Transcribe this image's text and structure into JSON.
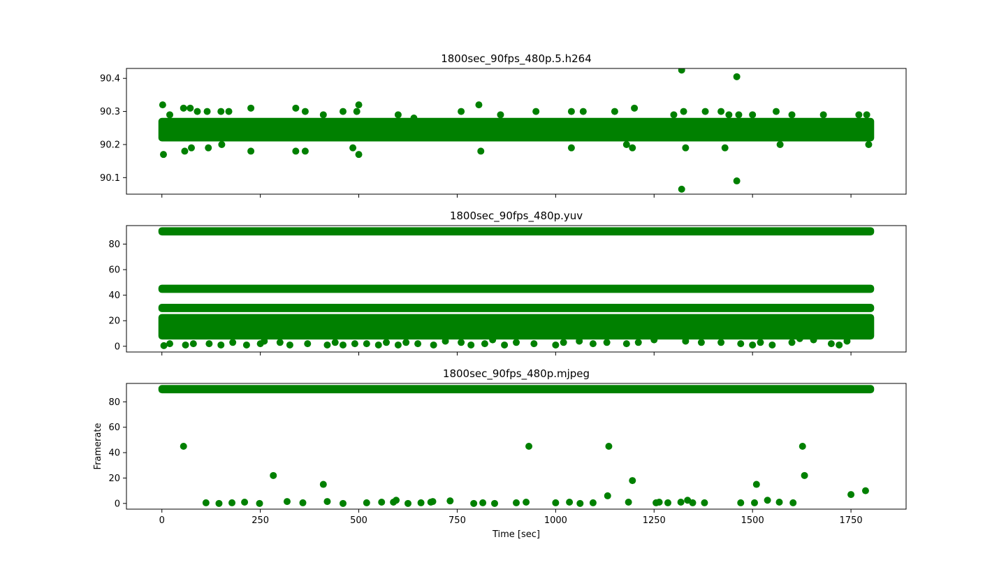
{
  "chart_data": [
    {
      "type": "scatter",
      "title": "1800sec_90fps_480p.5.h264",
      "xlabel": "",
      "ylabel": "",
      "color": "#008000",
      "xlim": [
        -90,
        1890
      ],
      "ylim": [
        90.05,
        90.43
      ],
      "xticks": [
        0,
        250,
        500,
        750,
        1000,
        1250,
        1500,
        1750
      ],
      "yticks": [
        90.1,
        90.2,
        90.3,
        90.4
      ],
      "ytick_labels": [
        "90.1",
        "90.2",
        "90.3",
        "90.4"
      ],
      "show_xtick_labels": false,
      "bands": [
        {
          "x0": 0,
          "x1": 1800,
          "y0": 90.22,
          "y1": 90.27
        }
      ],
      "points": [
        {
          "x": 2,
          "y": 90.32
        },
        {
          "x": 4,
          "y": 90.17
        },
        {
          "x": 20,
          "y": 90.29
        },
        {
          "x": 55,
          "y": 90.31
        },
        {
          "x": 58,
          "y": 90.18
        },
        {
          "x": 72,
          "y": 90.31
        },
        {
          "x": 75,
          "y": 90.19
        },
        {
          "x": 90,
          "y": 90.3
        },
        {
          "x": 115,
          "y": 90.3
        },
        {
          "x": 118,
          "y": 90.19
        },
        {
          "x": 150,
          "y": 90.3
        },
        {
          "x": 152,
          "y": 90.2
        },
        {
          "x": 170,
          "y": 90.3
        },
        {
          "x": 226,
          "y": 90.31
        },
        {
          "x": 226,
          "y": 90.18
        },
        {
          "x": 340,
          "y": 90.31
        },
        {
          "x": 340,
          "y": 90.18
        },
        {
          "x": 364,
          "y": 90.3
        },
        {
          "x": 364,
          "y": 90.18
        },
        {
          "x": 410,
          "y": 90.29
        },
        {
          "x": 460,
          "y": 90.3
        },
        {
          "x": 485,
          "y": 90.19
        },
        {
          "x": 495,
          "y": 90.3
        },
        {
          "x": 500,
          "y": 90.32
        },
        {
          "x": 500,
          "y": 90.17
        },
        {
          "x": 600,
          "y": 90.29
        },
        {
          "x": 640,
          "y": 90.28
        },
        {
          "x": 760,
          "y": 90.3
        },
        {
          "x": 805,
          "y": 90.32
        },
        {
          "x": 810,
          "y": 90.18
        },
        {
          "x": 860,
          "y": 90.29
        },
        {
          "x": 950,
          "y": 90.3
        },
        {
          "x": 1040,
          "y": 90.3
        },
        {
          "x": 1040,
          "y": 90.19
        },
        {
          "x": 1070,
          "y": 90.3
        },
        {
          "x": 1150,
          "y": 90.3
        },
        {
          "x": 1180,
          "y": 90.2
        },
        {
          "x": 1195,
          "y": 90.19
        },
        {
          "x": 1200,
          "y": 90.31
        },
        {
          "x": 1300,
          "y": 90.29
        },
        {
          "x": 1320,
          "y": 90.425
        },
        {
          "x": 1320,
          "y": 90.065
        },
        {
          "x": 1325,
          "y": 90.3
        },
        {
          "x": 1330,
          "y": 90.19
        },
        {
          "x": 1380,
          "y": 90.3
        },
        {
          "x": 1420,
          "y": 90.3
        },
        {
          "x": 1430,
          "y": 90.19
        },
        {
          "x": 1440,
          "y": 90.29
        },
        {
          "x": 1460,
          "y": 90.405
        },
        {
          "x": 1460,
          "y": 90.09
        },
        {
          "x": 1465,
          "y": 90.29
        },
        {
          "x": 1500,
          "y": 90.29
        },
        {
          "x": 1560,
          "y": 90.3
        },
        {
          "x": 1570,
          "y": 90.2
        },
        {
          "x": 1600,
          "y": 90.29
        },
        {
          "x": 1680,
          "y": 90.29
        },
        {
          "x": 1770,
          "y": 90.29
        },
        {
          "x": 1790,
          "y": 90.29
        },
        {
          "x": 1795,
          "y": 90.2
        }
      ]
    },
    {
      "type": "scatter",
      "title": "1800sec_90fps_480p.yuv",
      "xlabel": "",
      "ylabel": "",
      "color": "#008000",
      "xlim": [
        -90,
        1890
      ],
      "ylim": [
        -4.5,
        94.5
      ],
      "xticks": [
        0,
        250,
        500,
        750,
        1000,
        1250,
        1500,
        1750
      ],
      "yticks": [
        0,
        20,
        40,
        60,
        80
      ],
      "ytick_labels": [
        "0",
        "20",
        "40",
        "60",
        "80"
      ],
      "show_xtick_labels": false,
      "bands": [
        {
          "x0": 0,
          "x1": 1800,
          "y0": 89.5,
          "y1": 90.5
        },
        {
          "x0": 0,
          "x1": 1800,
          "y0": 44.5,
          "y1": 45.5
        },
        {
          "x0": 0,
          "x1": 1800,
          "y0": 29.5,
          "y1": 30.5
        },
        {
          "x0": 0,
          "x1": 1800,
          "y0": 8,
          "y1": 22.5
        }
      ],
      "points": [
        {
          "x": 5,
          "y": 0.5
        },
        {
          "x": 20,
          "y": 2
        },
        {
          "x": 60,
          "y": 1
        },
        {
          "x": 80,
          "y": 2
        },
        {
          "x": 120,
          "y": 2
        },
        {
          "x": 150,
          "y": 1
        },
        {
          "x": 180,
          "y": 3
        },
        {
          "x": 215,
          "y": 1
        },
        {
          "x": 250,
          "y": 2
        },
        {
          "x": 260,
          "y": 4
        },
        {
          "x": 300,
          "y": 3
        },
        {
          "x": 325,
          "y": 1
        },
        {
          "x": 370,
          "y": 2
        },
        {
          "x": 420,
          "y": 1
        },
        {
          "x": 440,
          "y": 3
        },
        {
          "x": 460,
          "y": 1
        },
        {
          "x": 490,
          "y": 2
        },
        {
          "x": 520,
          "y": 2
        },
        {
          "x": 550,
          "y": 1
        },
        {
          "x": 570,
          "y": 3
        },
        {
          "x": 600,
          "y": 1
        },
        {
          "x": 620,
          "y": 3
        },
        {
          "x": 650,
          "y": 2
        },
        {
          "x": 690,
          "y": 1
        },
        {
          "x": 720,
          "y": 4
        },
        {
          "x": 760,
          "y": 3
        },
        {
          "x": 785,
          "y": 1
        },
        {
          "x": 820,
          "y": 2
        },
        {
          "x": 840,
          "y": 5
        },
        {
          "x": 870,
          "y": 1
        },
        {
          "x": 900,
          "y": 3
        },
        {
          "x": 945,
          "y": 2
        },
        {
          "x": 1000,
          "y": 1
        },
        {
          "x": 1020,
          "y": 3
        },
        {
          "x": 1060,
          "y": 4
        },
        {
          "x": 1095,
          "y": 2
        },
        {
          "x": 1130,
          "y": 3
        },
        {
          "x": 1180,
          "y": 2
        },
        {
          "x": 1210,
          "y": 3
        },
        {
          "x": 1250,
          "y": 5
        },
        {
          "x": 1330,
          "y": 4
        },
        {
          "x": 1370,
          "y": 3
        },
        {
          "x": 1420,
          "y": 3
        },
        {
          "x": 1470,
          "y": 2
        },
        {
          "x": 1500,
          "y": 1
        },
        {
          "x": 1520,
          "y": 3
        },
        {
          "x": 1550,
          "y": 1
        },
        {
          "x": 1600,
          "y": 3
        },
        {
          "x": 1620,
          "y": 6
        },
        {
          "x": 1655,
          "y": 5
        },
        {
          "x": 1700,
          "y": 2
        },
        {
          "x": 1720,
          "y": 1
        },
        {
          "x": 1740,
          "y": 4
        }
      ]
    },
    {
      "type": "scatter",
      "title": "1800sec_90fps_480p.mjpeg",
      "xlabel": "Time [sec]",
      "ylabel": "Framerate",
      "color": "#008000",
      "xlim": [
        -90,
        1890
      ],
      "ylim": [
        -4.5,
        94.5
      ],
      "xticks": [
        0,
        250,
        500,
        750,
        1000,
        1250,
        1500,
        1750
      ],
      "xtick_labels": [
        "0",
        "250",
        "500",
        "750",
        "1000",
        "1250",
        "1500",
        "1750"
      ],
      "yticks": [
        0,
        20,
        40,
        60,
        80
      ],
      "ytick_labels": [
        "0",
        "20",
        "40",
        "60",
        "80"
      ],
      "show_xtick_labels": true,
      "bands": [
        {
          "x0": 0,
          "x1": 1800,
          "y0": 89.5,
          "y1": 90.5
        }
      ],
      "points": [
        {
          "x": 55,
          "y": 45
        },
        {
          "x": 112,
          "y": 0.5
        },
        {
          "x": 145,
          "y": 0
        },
        {
          "x": 178,
          "y": 0.5
        },
        {
          "x": 210,
          "y": 1
        },
        {
          "x": 248,
          "y": 0
        },
        {
          "x": 283,
          "y": 22
        },
        {
          "x": 318,
          "y": 1.5
        },
        {
          "x": 358,
          "y": 0.5
        },
        {
          "x": 410,
          "y": 15
        },
        {
          "x": 420,
          "y": 1.5
        },
        {
          "x": 460,
          "y": 0
        },
        {
          "x": 520,
          "y": 0.5
        },
        {
          "x": 558,
          "y": 1
        },
        {
          "x": 588,
          "y": 1
        },
        {
          "x": 595,
          "y": 2.5
        },
        {
          "x": 625,
          "y": 0
        },
        {
          "x": 658,
          "y": 0.5
        },
        {
          "x": 683,
          "y": 1
        },
        {
          "x": 688,
          "y": 1.5
        },
        {
          "x": 732,
          "y": 2
        },
        {
          "x": 792,
          "y": 0
        },
        {
          "x": 815,
          "y": 0.5
        },
        {
          "x": 845,
          "y": 0
        },
        {
          "x": 900,
          "y": 0.5
        },
        {
          "x": 925,
          "y": 1
        },
        {
          "x": 932,
          "y": 45
        },
        {
          "x": 1000,
          "y": 0.5
        },
        {
          "x": 1035,
          "y": 1
        },
        {
          "x": 1062,
          "y": 0
        },
        {
          "x": 1095,
          "y": 0.5
        },
        {
          "x": 1132,
          "y": 6
        },
        {
          "x": 1135,
          "y": 45
        },
        {
          "x": 1185,
          "y": 1
        },
        {
          "x": 1195,
          "y": 18
        },
        {
          "x": 1255,
          "y": 0.5
        },
        {
          "x": 1263,
          "y": 1
        },
        {
          "x": 1285,
          "y": 0.5
        },
        {
          "x": 1318,
          "y": 1
        },
        {
          "x": 1335,
          "y": 2.5
        },
        {
          "x": 1348,
          "y": 0.5
        },
        {
          "x": 1378,
          "y": 0.5
        },
        {
          "x": 1470,
          "y": 0.5
        },
        {
          "x": 1505,
          "y": 0.5
        },
        {
          "x": 1510,
          "y": 15
        },
        {
          "x": 1538,
          "y": 2.5
        },
        {
          "x": 1568,
          "y": 1
        },
        {
          "x": 1603,
          "y": 0.5
        },
        {
          "x": 1627,
          "y": 45
        },
        {
          "x": 1632,
          "y": 22
        },
        {
          "x": 1750,
          "y": 7
        },
        {
          "x": 1787,
          "y": 10
        }
      ]
    }
  ]
}
